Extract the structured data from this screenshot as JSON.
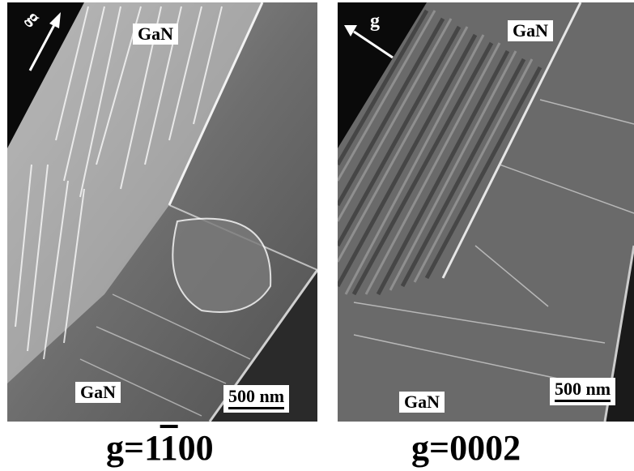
{
  "left_panel": {
    "g_label": "g",
    "top_label": "GaN",
    "bottom_label": "GaN",
    "scale_label": "500 nm"
  },
  "right_panel": {
    "g_label": "g",
    "top_label": "GaN",
    "bottom_label": "GaN",
    "scale_label": "500 nm"
  },
  "captions": {
    "left_prefix": "g=1",
    "left_overbar_digit": "1",
    "left_suffix": "00",
    "right": "g=0002"
  },
  "colors": {
    "background": "#ffffff",
    "micrograph_dark": "#0a0a0a",
    "label_box": "#ffffff"
  }
}
